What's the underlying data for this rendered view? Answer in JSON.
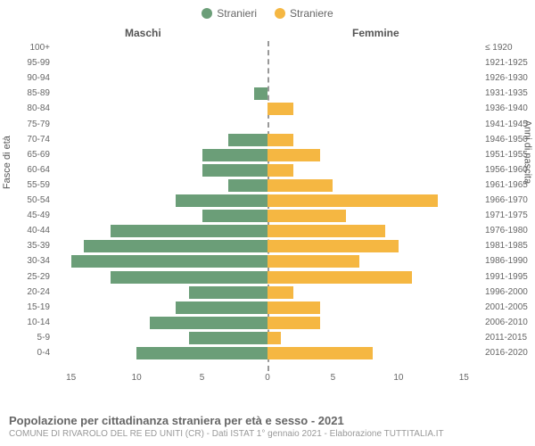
{
  "legend": {
    "male": {
      "label": "Stranieri",
      "color": "#6b9e78"
    },
    "female": {
      "label": "Straniere",
      "color": "#f5b742"
    }
  },
  "headers": {
    "male": "Maschi",
    "female": "Femmine"
  },
  "axis_labels": {
    "left": "Fasce di età",
    "right": "Anni di nascita"
  },
  "chart": {
    "type": "population-pyramid",
    "xmax": 16,
    "xticks_left": [
      15,
      10,
      5,
      0
    ],
    "xticks_right": [
      0,
      5,
      10,
      15
    ],
    "row_height": 17.1,
    "bar_color_m": "#6b9e78",
    "bar_color_f": "#f5b742",
    "background": "#ffffff",
    "rows": [
      {
        "age": "100+",
        "birth": "≤ 1920",
        "m": 0,
        "f": 0
      },
      {
        "age": "95-99",
        "birth": "1921-1925",
        "m": 0,
        "f": 0
      },
      {
        "age": "90-94",
        "birth": "1926-1930",
        "m": 0,
        "f": 0
      },
      {
        "age": "85-89",
        "birth": "1931-1935",
        "m": 1,
        "f": 0
      },
      {
        "age": "80-84",
        "birth": "1936-1940",
        "m": 0,
        "f": 2
      },
      {
        "age": "75-79",
        "birth": "1941-1945",
        "m": 0,
        "f": 0
      },
      {
        "age": "70-74",
        "birth": "1946-1950",
        "m": 3,
        "f": 2
      },
      {
        "age": "65-69",
        "birth": "1951-1955",
        "m": 5,
        "f": 4
      },
      {
        "age": "60-64",
        "birth": "1956-1960",
        "m": 5,
        "f": 2
      },
      {
        "age": "55-59",
        "birth": "1961-1965",
        "m": 3,
        "f": 5
      },
      {
        "age": "50-54",
        "birth": "1966-1970",
        "m": 7,
        "f": 13
      },
      {
        "age": "45-49",
        "birth": "1971-1975",
        "m": 5,
        "f": 6
      },
      {
        "age": "40-44",
        "birth": "1976-1980",
        "m": 12,
        "f": 9
      },
      {
        "age": "35-39",
        "birth": "1981-1985",
        "m": 14,
        "f": 10
      },
      {
        "age": "30-34",
        "birth": "1986-1990",
        "m": 15,
        "f": 7
      },
      {
        "age": "25-29",
        "birth": "1991-1995",
        "m": 12,
        "f": 11
      },
      {
        "age": "20-24",
        "birth": "1996-2000",
        "m": 6,
        "f": 2
      },
      {
        "age": "15-19",
        "birth": "2001-2005",
        "m": 7,
        "f": 4
      },
      {
        "age": "10-14",
        "birth": "2006-2010",
        "m": 9,
        "f": 4
      },
      {
        "age": "5-9",
        "birth": "2011-2015",
        "m": 6,
        "f": 1
      },
      {
        "age": "0-4",
        "birth": "2016-2020",
        "m": 10,
        "f": 8
      }
    ]
  },
  "footer": {
    "title": "Popolazione per cittadinanza straniera per età e sesso - 2021",
    "sub": "COMUNE DI RIVAROLO DEL RE ED UNITI (CR) - Dati ISTAT 1° gennaio 2021 - Elaborazione TUTTITALIA.IT"
  }
}
